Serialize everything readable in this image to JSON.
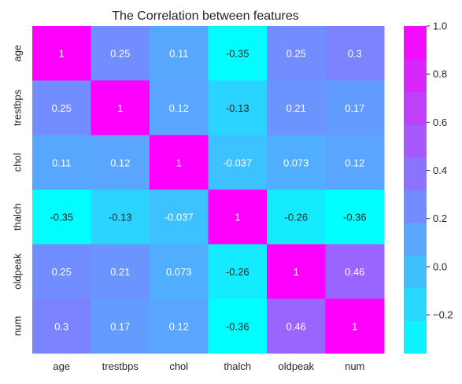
{
  "chart_data": {
    "type": "heatmap",
    "title": "The Correlation between features",
    "xlabel": "",
    "ylabel": "",
    "x_categories": [
      "age",
      "trestbps",
      "chol",
      "thalch",
      "oldpeak",
      "num"
    ],
    "y_categories": [
      "age",
      "trestbps",
      "chol",
      "thalch",
      "oldpeak",
      "num"
    ],
    "values": [
      [
        1,
        0.25,
        0.11,
        -0.35,
        0.25,
        0.3
      ],
      [
        0.25,
        1,
        0.12,
        -0.13,
        0.21,
        0.17
      ],
      [
        0.11,
        0.12,
        1,
        -0.037,
        0.073,
        0.12
      ],
      [
        -0.35,
        -0.13,
        -0.037,
        1,
        -0.26,
        -0.36
      ],
      [
        0.25,
        0.21,
        0.073,
        -0.26,
        1,
        0.46
      ],
      [
        0.3,
        0.17,
        0.12,
        -0.36,
        0.46,
        1
      ]
    ],
    "annotations": [
      [
        "1",
        "0.25",
        "0.11",
        "-0.35",
        "0.25",
        "0.3"
      ],
      [
        "0.25",
        "1",
        "0.12",
        "-0.13",
        "0.21",
        "0.17"
      ],
      [
        "0.11",
        "0.12",
        "1",
        "-0.037",
        "0.073",
        "0.12"
      ],
      [
        "-0.35",
        "-0.13",
        "-0.037",
        "1",
        "-0.26",
        "-0.36"
      ],
      [
        "0.25",
        "0.21",
        "0.073",
        "-0.26",
        "1",
        "0.46"
      ],
      [
        "0.3",
        "0.17",
        "0.12",
        "-0.36",
        "0.46",
        "1"
      ]
    ],
    "colormap": "cool",
    "color_min": "#00ffff",
    "color_max": "#ff00ff",
    "vmin": -0.36,
    "vmax": 1.0,
    "colorbar": {
      "ticks": [
        -0.2,
        0.0,
        0.2,
        0.4,
        0.6,
        0.8,
        1.0
      ],
      "tick_labels": [
        "−0.2",
        "0.0",
        "0.2",
        "0.4",
        "0.6",
        "0.8",
        "1.0"
      ],
      "placement": "right"
    },
    "grid": false
  }
}
